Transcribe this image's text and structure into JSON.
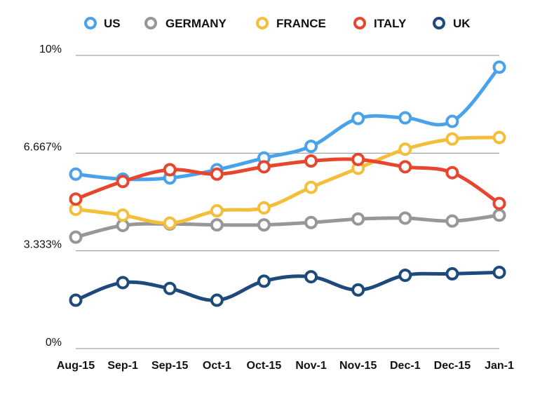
{
  "chart_data": {
    "type": "line",
    "title": "",
    "xlabel": "",
    "ylabel": "",
    "categories": [
      "Aug-15",
      "Sep-1",
      "Sep-15",
      "Oct-1",
      "Oct-15",
      "Nov-1",
      "Nov-15",
      "Dec-1",
      "Dec-15",
      "Jan-1"
    ],
    "yticks": [
      "0%",
      "3.333%",
      "6.667%",
      "10%"
    ],
    "ylim": [
      0,
      10
    ],
    "grid": true,
    "legend": "top",
    "series": [
      {
        "name": "US",
        "color": "#4aa3ea",
        "values": [
          5.95,
          5.78,
          5.82,
          6.1,
          6.5,
          6.9,
          7.85,
          7.87,
          7.75,
          9.6
        ]
      },
      {
        "name": "GERMANY",
        "color": "#979797",
        "values": [
          3.8,
          4.2,
          4.25,
          4.22,
          4.22,
          4.3,
          4.42,
          4.45,
          4.35,
          4.55
        ]
      },
      {
        "name": "FRANCE",
        "color": "#f3bf3a",
        "values": [
          4.75,
          4.55,
          4.28,
          4.7,
          4.8,
          5.5,
          6.15,
          6.8,
          7.15,
          7.2
        ]
      },
      {
        "name": "ITALY",
        "color": "#e8452f",
        "values": [
          5.1,
          5.7,
          6.1,
          5.95,
          6.2,
          6.4,
          6.45,
          6.2,
          6.0,
          4.95
        ]
      },
      {
        "name": "UK",
        "color": "#1d4a7a",
        "values": [
          1.65,
          2.25,
          2.05,
          1.65,
          2.3,
          2.45,
          2.0,
          2.5,
          2.55,
          2.6
        ]
      }
    ]
  }
}
